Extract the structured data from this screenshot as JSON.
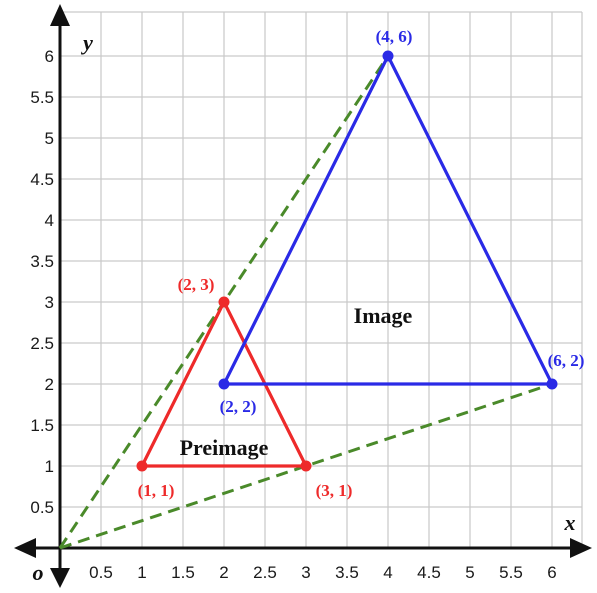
{
  "axes": {
    "x_label": "x",
    "y_label": "y",
    "origin_label": "o",
    "x_ticks": [
      "0.5",
      "1",
      "1.5",
      "2",
      "2.5",
      "3",
      "3.5",
      "4",
      "4.5",
      "5",
      "5.5",
      "6"
    ],
    "y_ticks": [
      "0.5",
      "1",
      "1.5",
      "2",
      "2.5",
      "3",
      "3.5",
      "4",
      "4.5",
      "5",
      "5.5",
      "6"
    ],
    "x_range": [
      0,
      6
    ],
    "y_range": [
      0,
      6
    ],
    "grid": true
  },
  "preimage": {
    "label": "Preimage",
    "color": "#ee2a2a",
    "vertices": [
      {
        "x": 2,
        "y": 3,
        "label": "(2, 3)"
      },
      {
        "x": 1,
        "y": 1,
        "label": "(1, 1)"
      },
      {
        "x": 3,
        "y": 1,
        "label": "(3, 1)"
      }
    ]
  },
  "image": {
    "label": "Image",
    "color": "#2a2ae6",
    "vertices": [
      {
        "x": 4,
        "y": 6,
        "label": "(4, 6)"
      },
      {
        "x": 2,
        "y": 2,
        "label": "(2, 2)"
      },
      {
        "x": 6,
        "y": 2,
        "label": "(6, 2)"
      }
    ]
  },
  "dilation_rays": {
    "color": "#4a8a2a",
    "style": "dashed",
    "from": {
      "x": 0,
      "y": 0
    },
    "to": [
      {
        "x": 4,
        "y": 6
      },
      {
        "x": 6,
        "y": 2
      }
    ]
  }
}
